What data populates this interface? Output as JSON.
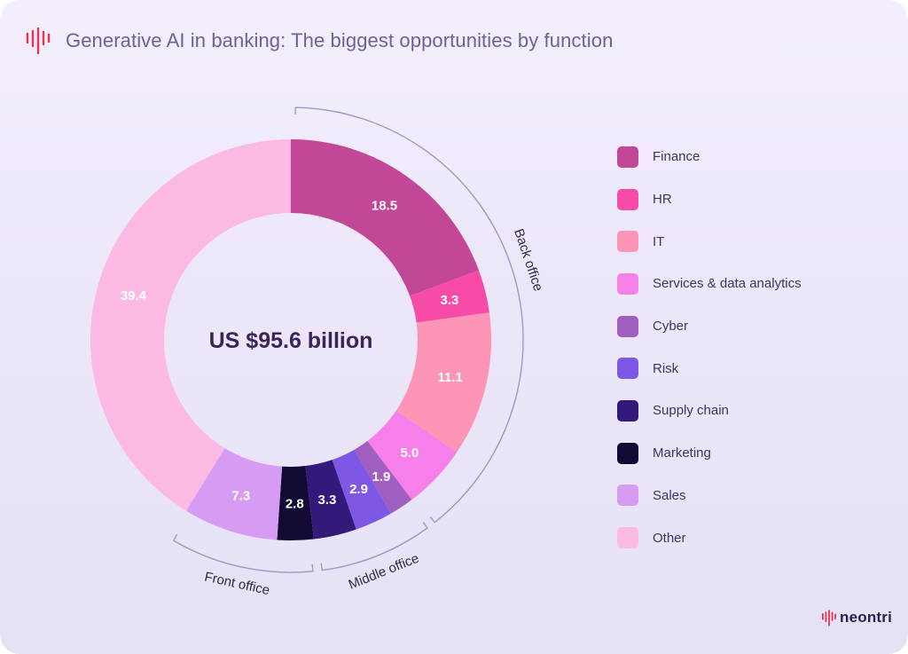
{
  "header": {
    "title": "Generative AI in banking: The biggest opportunities by function"
  },
  "chart_data": {
    "type": "pie",
    "variant": "donut",
    "center_label": "US $95.6 billion",
    "legend_position": "right",
    "categories": [
      "Finance",
      "HR",
      "IT",
      "Services & data analytics",
      "Cyber",
      "Risk",
      "Supply chain",
      "Marketing",
      "Sales",
      "Other"
    ],
    "values": [
      18.5,
      3.3,
      11.1,
      5.0,
      1.9,
      2.9,
      3.3,
      2.8,
      7.3,
      39.4
    ],
    "value_labels": [
      "18.5",
      "3.3",
      "11.1",
      "5.0",
      "1.9",
      "2.9",
      "3.3",
      "2.8",
      "7.3",
      "39.4"
    ],
    "colors": [
      "#c34797",
      "#f84aa7",
      "#fd95b7",
      "#f77fe9",
      "#a05ec1",
      "#7c58e4",
      "#33197a",
      "#130a33",
      "#d69bf2",
      "#fbb9e4"
    ],
    "groups": [
      {
        "label": "Back office",
        "members": [
          "Finance",
          "HR",
          "IT",
          "Services & data analytics"
        ]
      },
      {
        "label": "Middle office",
        "members": [
          "Cyber",
          "Risk",
          "Supply chain"
        ]
      },
      {
        "label": "Front office",
        "members": [
          "Marketing",
          "Sales"
        ]
      }
    ]
  },
  "brand": {
    "name": "neontri",
    "color": "#e6334f"
  }
}
